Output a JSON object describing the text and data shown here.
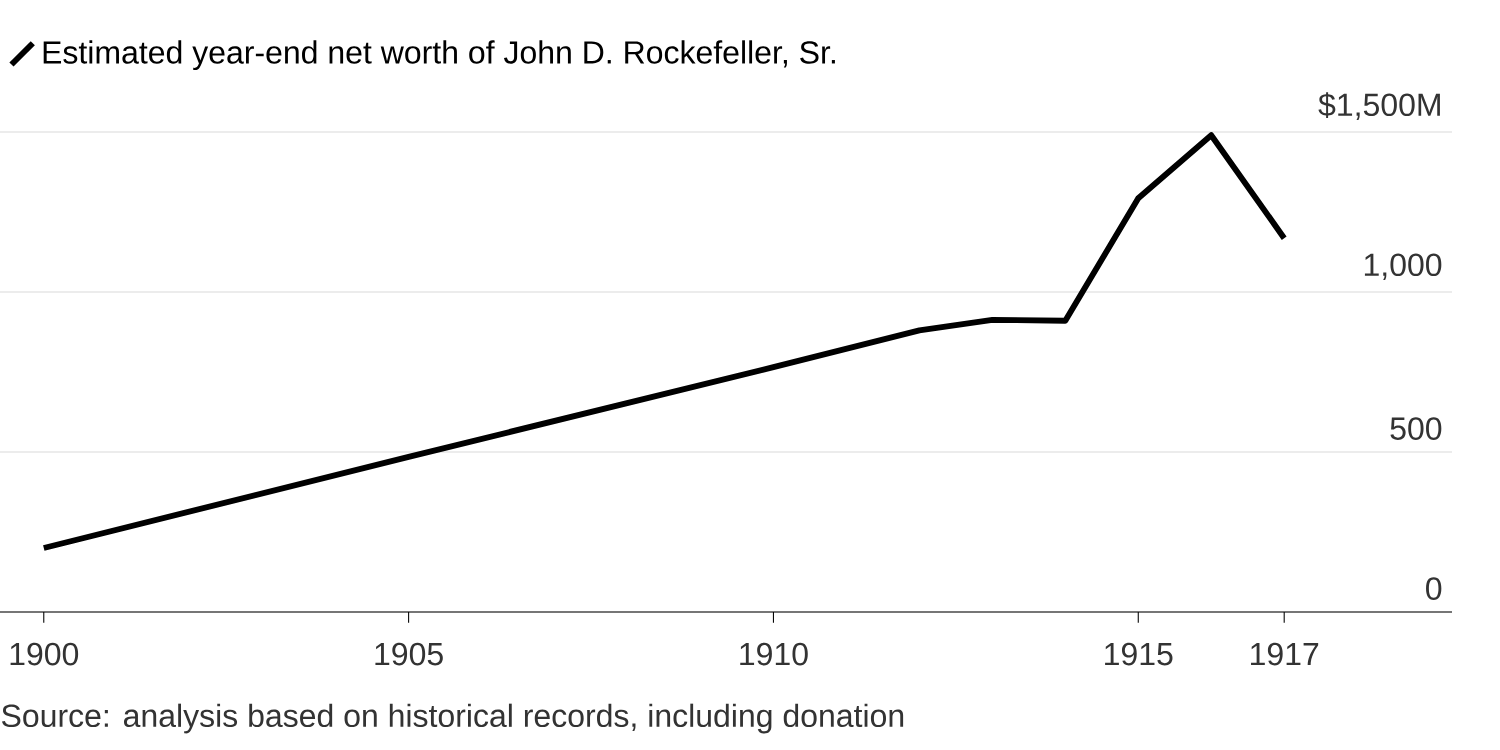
{
  "chart_data": {
    "type": "line",
    "x": [
      1900,
      1905,
      1910,
      1912,
      1913,
      1914,
      1915,
      1916,
      1917
    ],
    "series": [
      {
        "name": "Estimated year-end net worth of John D. Rockefeller, Sr.",
        "color": "#000000",
        "values": [
          200,
          485,
          765,
          880,
          913,
          910,
          1293,
          1490,
          1168
        ]
      }
    ],
    "xlim": [
      1899.4,
      1919.3
    ],
    "xticks": [
      1900,
      1905,
      1910,
      1915,
      1917
    ],
    "ylim": [
      0,
      1500
    ],
    "yticks": [
      0,
      500,
      {
        "value": 1000,
        "label": "1,000"
      },
      {
        "value": 1500,
        "label": "$1,500M"
      }
    ],
    "grid": "y",
    "legend": "top left",
    "annotations": [
      "Source: analysis based on historical records, including donation"
    ]
  }
}
